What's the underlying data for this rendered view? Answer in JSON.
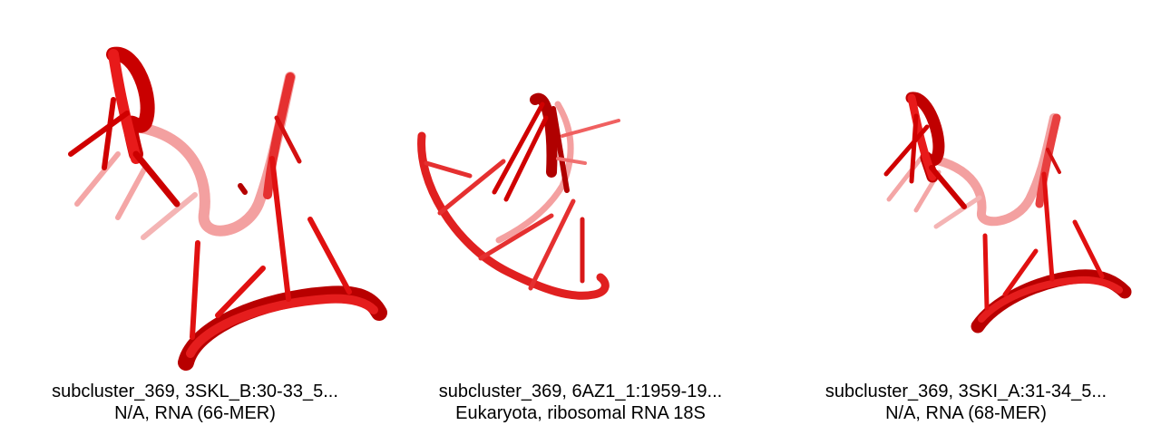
{
  "panels": [
    {
      "line1": "subcluster_369, 3SKL_B:30-33_5...",
      "line2": "N/A, RNA (66-MER)"
    },
    {
      "line1": "subcluster_369, 6AZ1_1:1959-19...",
      "line2": "Eukaryota, ribosomal RNA 18S"
    },
    {
      "line1": "subcluster_369, 3SKI_A:31-34_5...",
      "line2": "N/A, RNA (68-MER)"
    }
  ],
  "colors": {
    "strand": "#e21313",
    "strand_dark": "#a60000",
    "strand_faded": "#f08a8a"
  }
}
